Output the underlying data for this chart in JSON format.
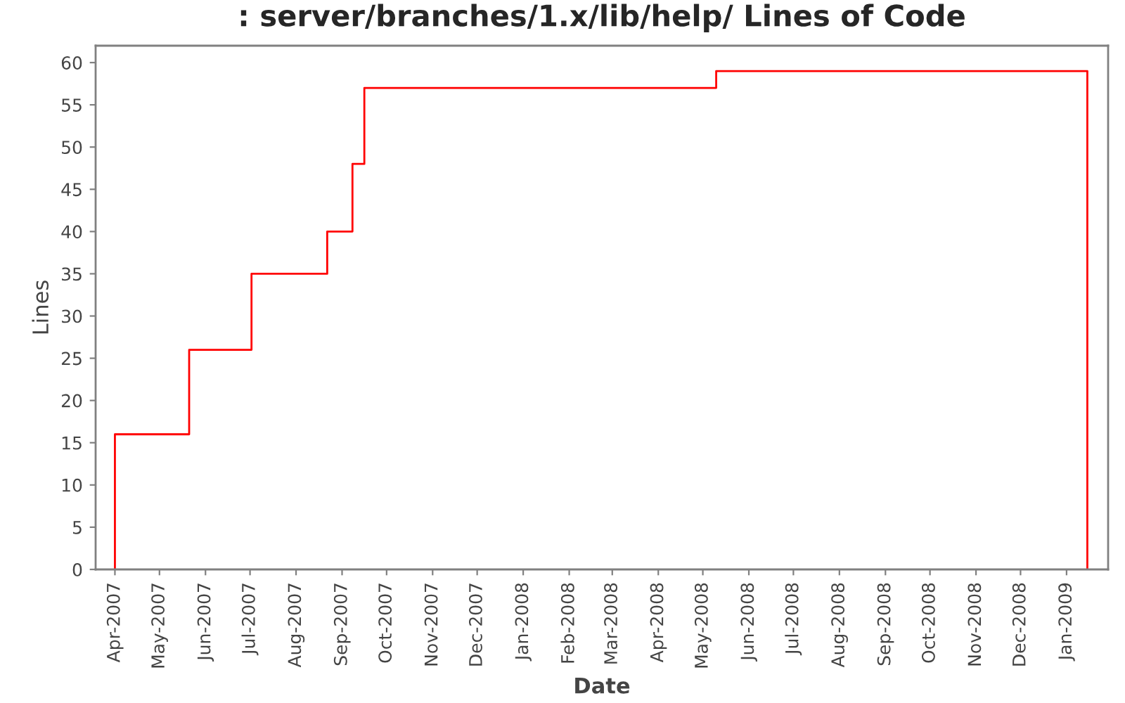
{
  "chart_data": {
    "type": "step",
    "title": ": server/branches/1.x/lib/help/ Lines of Code",
    "xlabel": "Date",
    "ylabel": "Lines",
    "series": [
      {
        "color": "#ff0000",
        "x": [
          "2007-04-01",
          "2007-04-01",
          "2007-05-21",
          "2007-07-02",
          "2007-08-22",
          "2007-09-08",
          "2007-09-16",
          "2008-05-10",
          "2009-01-15",
          "2009-01-15"
        ],
        "values": [
          0,
          16,
          26,
          35,
          40,
          48,
          57,
          59,
          59,
          0
        ]
      }
    ],
    "xlim": [
      "2007-03-19",
      "2009-01-29"
    ],
    "xticks": [
      {
        "value": "2007-04-01",
        "label": "Apr-2007"
      },
      {
        "value": "2007-05-01",
        "label": "May-2007"
      },
      {
        "value": "2007-06-01",
        "label": "Jun-2007"
      },
      {
        "value": "2007-07-01",
        "label": "Jul-2007"
      },
      {
        "value": "2007-08-01",
        "label": "Aug-2007"
      },
      {
        "value": "2007-09-01",
        "label": "Sep-2007"
      },
      {
        "value": "2007-10-01",
        "label": "Oct-2007"
      },
      {
        "value": "2007-11-01",
        "label": "Nov-2007"
      },
      {
        "value": "2007-12-01",
        "label": "Dec-2007"
      },
      {
        "value": "2008-01-01",
        "label": "Jan-2008"
      },
      {
        "value": "2008-02-01",
        "label": "Feb-2008"
      },
      {
        "value": "2008-03-01",
        "label": "Mar-2008"
      },
      {
        "value": "2008-04-01",
        "label": "Apr-2008"
      },
      {
        "value": "2008-05-01",
        "label": "May-2008"
      },
      {
        "value": "2008-06-01",
        "label": "Jun-2008"
      },
      {
        "value": "2008-07-01",
        "label": "Jul-2008"
      },
      {
        "value": "2008-08-01",
        "label": "Aug-2008"
      },
      {
        "value": "2008-09-01",
        "label": "Sep-2008"
      },
      {
        "value": "2008-10-01",
        "label": "Oct-2008"
      },
      {
        "value": "2008-11-01",
        "label": "Nov-2008"
      },
      {
        "value": "2008-12-01",
        "label": "Dec-2008"
      },
      {
        "value": "2009-01-01",
        "label": "Jan-2009"
      }
    ],
    "ylim": [
      0,
      62
    ],
    "yticks": [
      0,
      5,
      10,
      15,
      20,
      25,
      30,
      35,
      40,
      45,
      50,
      55,
      60
    ],
    "grid": false
  }
}
